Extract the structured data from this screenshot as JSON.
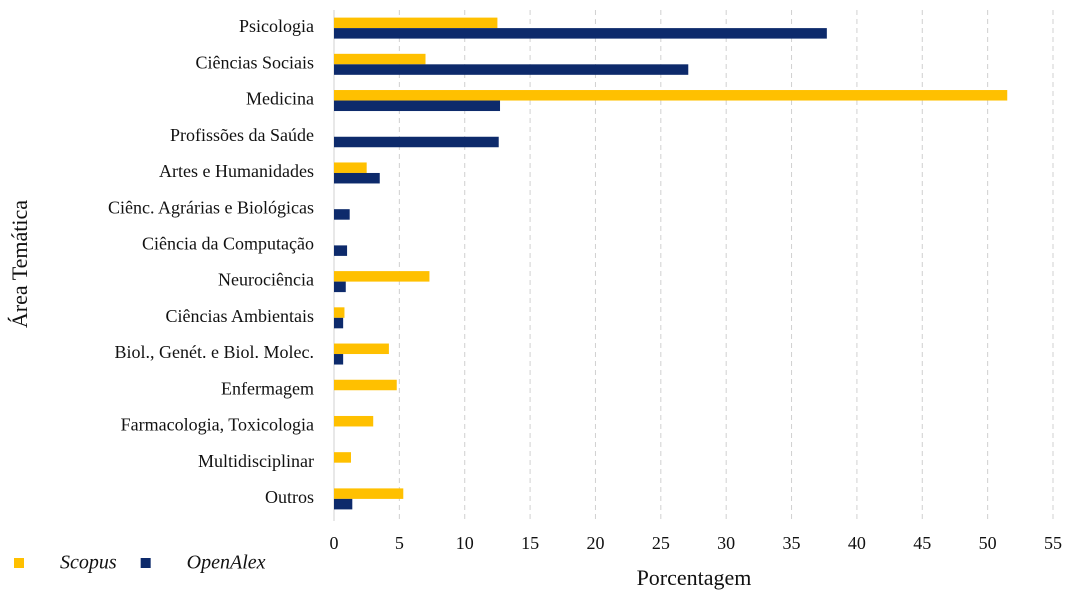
{
  "chart_data": {
    "type": "hbar",
    "xlabel": "Porcentagem",
    "ylabel": "Área Temática",
    "categories": [
      "Psicologia",
      "Ciências Sociais",
      "Medicina",
      "Profissões da Saúde",
      "Artes e Humanidades",
      "Ciênc. Agrárias e Biológicas",
      "Ciência da Computação",
      "Neurociência",
      "Ciências Ambientais",
      "Biol., Genét. e Biol. Molec.",
      "Enfermagem",
      "Farmacologia, Toxicologia",
      "Multidisciplinar",
      "Outros"
    ],
    "series": [
      {
        "name": "Scopus",
        "color": "#ffc000",
        "values": [
          12.5,
          7.0,
          51.5,
          0,
          2.5,
          0,
          0,
          7.3,
          0.8,
          4.2,
          4.8,
          3.0,
          1.3,
          5.3
        ]
      },
      {
        "name": "OpenAlex",
        "color": "#0d2a6b",
        "values": [
          37.7,
          27.1,
          12.7,
          12.6,
          3.5,
          1.2,
          1.0,
          0.9,
          0.7,
          0.7,
          0,
          0,
          0,
          1.4
        ]
      }
    ],
    "xlim": [
      0,
      55
    ],
    "xticks": [
      0,
      5,
      10,
      15,
      20,
      25,
      30,
      35,
      40,
      45,
      50,
      55
    ],
    "grid": true,
    "legend": "bottom-left"
  }
}
